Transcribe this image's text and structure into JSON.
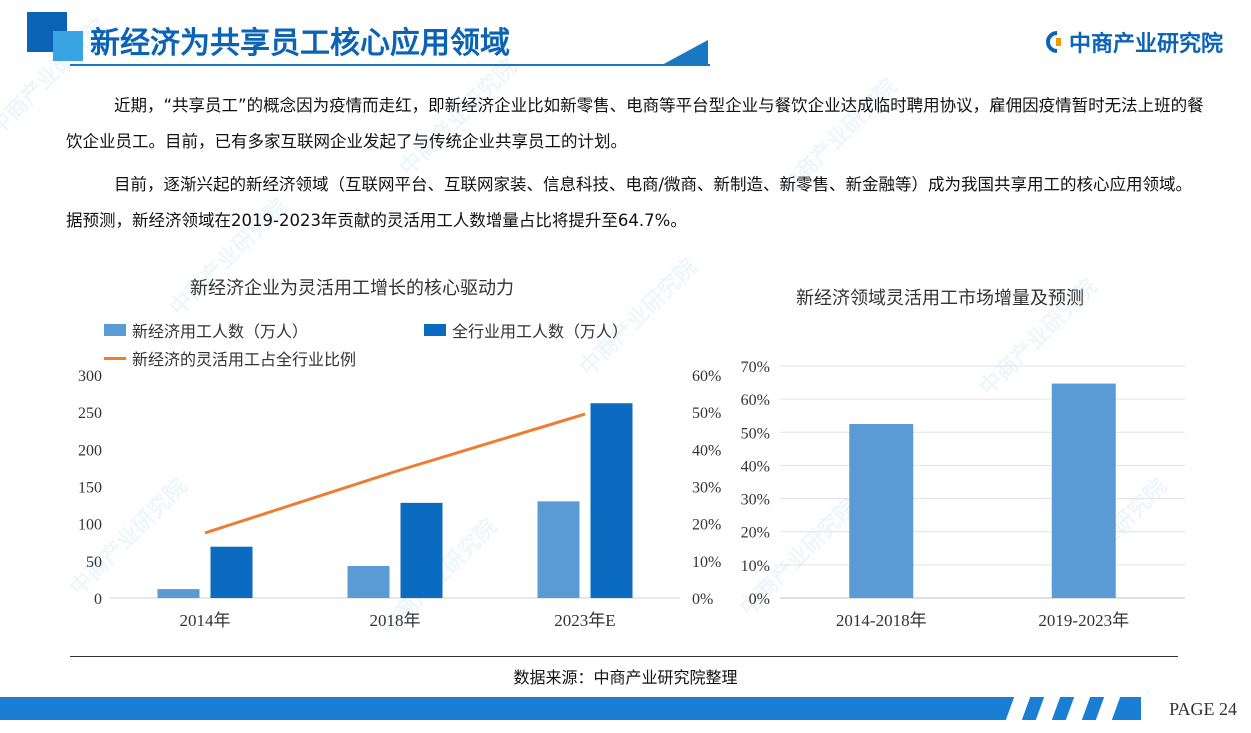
{
  "header": {
    "title": "新经济为共享员工核心应用领域",
    "logo_text": "中商产业研究院",
    "brand_color": "#0b63b5"
  },
  "paragraphs": [
    "近期，“共享员工”的概念因为疫情而走红，即新经济企业比如新零售、电商等平台型企业与餐饮企业达成临时聘用协议，雇佣因疫情暂时无法上班的餐饮企业员工。目前，已有多家互联网企业发起了与传统企业共享员工的计划。",
    "目前，逐渐兴起的新经济领域（互联网平台、互联网家装、信息科技、电商/微商、新制造、新零售、新金融等）成为我国共享用工的核心应用领域。据预测，新经济领域在2019-2023年贡献的灵活用工人数增量占比将提升至64.7%。"
  ],
  "chart_data": [
    {
      "type": "bar",
      "title": "新经济企业为灵活用工增长的核心驱动力",
      "categories": [
        "2014年",
        "2018年",
        "2023年E"
      ],
      "series": [
        {
          "name": "新经济用工人数（万人）",
          "type": "bar",
          "axis": "left",
          "color": "#5b9bd5",
          "values": [
            12,
            43,
            130
          ]
        },
        {
          "name": "全行业用工人数（万人）",
          "type": "bar",
          "axis": "left",
          "color": "#0b6bc0",
          "values": [
            69,
            128,
            262
          ]
        },
        {
          "name": "新经济的灵活用工占全行业比例",
          "type": "line",
          "axis": "right",
          "color": "#ed7d31",
          "values": [
            17.5,
            34,
            49.5
          ]
        }
      ],
      "ylim": [
        0,
        300
      ],
      "yticks": [
        "0",
        "50",
        "100",
        "150",
        "200",
        "250",
        "300"
      ],
      "y2lim": [
        0,
        60
      ],
      "y2ticks": [
        "0%",
        "10%",
        "20%",
        "30%",
        "40%",
        "50%",
        "60%"
      ],
      "grid": false,
      "legend": "top"
    },
    {
      "type": "bar",
      "title": "新经济领域灵活用工市场增量及预测",
      "categories": [
        "2014-2018年",
        "2019-2023年"
      ],
      "values": [
        52.5,
        64.7
      ],
      "color": "#5b9bd5",
      "ylim": [
        0,
        70
      ],
      "yticks": [
        "0%",
        "10%",
        "20%",
        "30%",
        "40%",
        "50%",
        "60%",
        "70%"
      ],
      "grid": true
    }
  ],
  "source": "数据来源：中商产业研究院整理",
  "page": "PAGE 24"
}
